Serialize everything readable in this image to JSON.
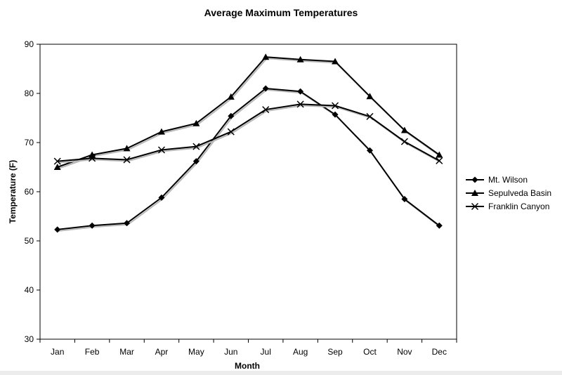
{
  "chart_data": {
    "type": "line",
    "title": "Average Maximum Temperatures",
    "xlabel": "Month",
    "ylabel": "Temperature (F)",
    "ylim": [
      30,
      90
    ],
    "yticks": [
      "30",
      "40",
      "50",
      "60",
      "70",
      "80",
      "90"
    ],
    "categories": [
      "Jan",
      "Feb",
      "Mar",
      "Apr",
      "May",
      "Jun",
      "Jul",
      "Aug",
      "Sep",
      "Oct",
      "Nov",
      "Dec"
    ],
    "legend_position": "right",
    "series": [
      {
        "name": "Mt. Wilson",
        "marker": "diamond",
        "values": [
          52.3,
          53.1,
          53.6,
          58.8,
          66.2,
          75.4,
          81.0,
          80.4,
          75.7,
          68.4,
          58.5,
          53.1
        ]
      },
      {
        "name": "Sepulveda Basin",
        "marker": "triangle",
        "values": [
          65.0,
          67.5,
          68.8,
          72.2,
          73.9,
          79.3,
          87.4,
          86.9,
          86.5,
          79.4,
          72.5,
          67.5
        ]
      },
      {
        "name": "Franklin Canyon",
        "marker": "x",
        "values": [
          66.2,
          66.8,
          66.5,
          68.5,
          69.2,
          72.2,
          76.7,
          77.8,
          77.5,
          75.3,
          70.2,
          66.3
        ]
      }
    ]
  }
}
